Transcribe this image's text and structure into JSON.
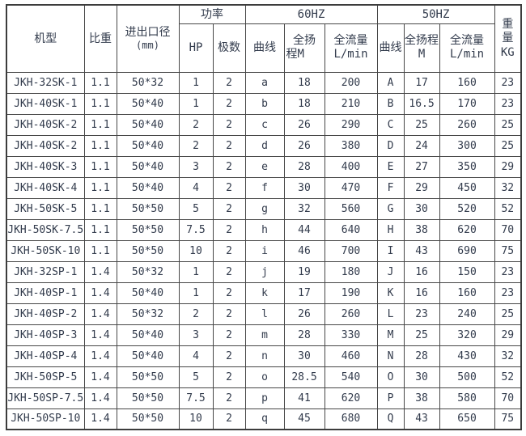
{
  "colors": {
    "text": "#323b4c",
    "border": "#474747",
    "background": "#ffffff"
  },
  "chart_data": {
    "type": "table",
    "title": "",
    "header": {
      "model": "机型",
      "gravity": "比重",
      "diameter": [
        "进出口径",
        "(mm)"
      ],
      "power_group": "功率",
      "hp": "HP",
      "poles": "极数",
      "hz60_group": "60HZ",
      "hz50_group": "50HZ",
      "curve": "曲线",
      "head60": [
        "全扬",
        "程M"
      ],
      "head50": [
        "全扬程",
        "M"
      ],
      "flow": [
        "全流量",
        "L/min"
      ],
      "weight": [
        "重",
        "量",
        "KG"
      ]
    },
    "columns": [
      "机型",
      "比重",
      "进出口径(mm)",
      "HP",
      "极数",
      "曲线",
      "全扬程M",
      "全流量L/min",
      "曲线",
      "全扬程M",
      "全流量L/min",
      "重量KG"
    ],
    "column_groups": [
      {
        "label": "功率",
        "columns": [
          3,
          4
        ]
      },
      {
        "label": "60HZ",
        "columns": [
          5,
          6,
          7
        ]
      },
      {
        "label": "50HZ",
        "columns": [
          8,
          9,
          10
        ]
      }
    ],
    "rows": [
      [
        "JKH-32SK-1",
        "1.1",
        "50*32",
        "1",
        "2",
        "a",
        "18",
        "200",
        "A",
        "17",
        "160",
        "23"
      ],
      [
        "JKH-40SK-1",
        "1.1",
        "50*40",
        "1",
        "2",
        "b",
        "18",
        "210",
        "B",
        "16.5",
        "170",
        "23"
      ],
      [
        "JKH-40SK-2",
        "1.1",
        "50*40",
        "2",
        "2",
        "c",
        "26",
        "290",
        "C",
        "25",
        "260",
        "25"
      ],
      [
        "JKH-40SK-2",
        "1.1",
        "50*40",
        "2",
        "2",
        "d",
        "26",
        "380",
        "D",
        "24",
        "300",
        "25"
      ],
      [
        "JKH-40SK-3",
        "1.1",
        "50*40",
        "3",
        "2",
        "e",
        "28",
        "400",
        "E",
        "27",
        "350",
        "29"
      ],
      [
        "JKH-40SK-4",
        "1.1",
        "50*40",
        "4",
        "2",
        "f",
        "30",
        "470",
        "F",
        "29",
        "450",
        "32"
      ],
      [
        "JKH-50SK-5",
        "1.1",
        "50*50",
        "5",
        "2",
        "g",
        "32",
        "560",
        "G",
        "30",
        "520",
        "52"
      ],
      [
        "JKH-50SK-7.5",
        "1.1",
        "50*50",
        "7.5",
        "2",
        "h",
        "44",
        "640",
        "H",
        "38",
        "620",
        "70"
      ],
      [
        "JKH-50SK-10",
        "1.1",
        "50*50",
        "10",
        "2",
        "i",
        "46",
        "700",
        "I",
        "43",
        "690",
        "75"
      ],
      [
        "JKH-32SP-1",
        "1.4",
        "50*32",
        "1",
        "2",
        "j",
        "19",
        "180",
        "J",
        "16",
        "150",
        "23"
      ],
      [
        "JKH-40SP-1",
        "1.4",
        "50*40",
        "1",
        "2",
        "k",
        "17",
        "190",
        "K",
        "16",
        "160",
        "23"
      ],
      [
        "JKH-40SP-2",
        "1.4",
        "50*32",
        "2",
        "2",
        "l",
        "26",
        "260",
        "L",
        "23",
        "240",
        "25"
      ],
      [
        "JKH-40SP-3",
        "1.4",
        "50*40",
        "3",
        "2",
        "m",
        "28",
        "330",
        "M",
        "25",
        "320",
        "29"
      ],
      [
        "JKH-40SP-4",
        "1.4",
        "50*40",
        "4",
        "2",
        "n",
        "30",
        "460",
        "N",
        "28",
        "430",
        "32"
      ],
      [
        "JKH-50SP-5",
        "1.4",
        "50*50",
        "5",
        "2",
        "o",
        "28.5",
        "540",
        "O",
        "30",
        "500",
        "52"
      ],
      [
        "JKH-50SP-7.5",
        "1.4",
        "50*50",
        "7.5",
        "2",
        "p",
        "41",
        "620",
        "P",
        "38",
        "580",
        "70"
      ],
      [
        "JKH-50SP-10",
        "1.4",
        "50*50",
        "10",
        "2",
        "q",
        "45",
        "680",
        "Q",
        "43",
        "650",
        "75"
      ]
    ]
  }
}
